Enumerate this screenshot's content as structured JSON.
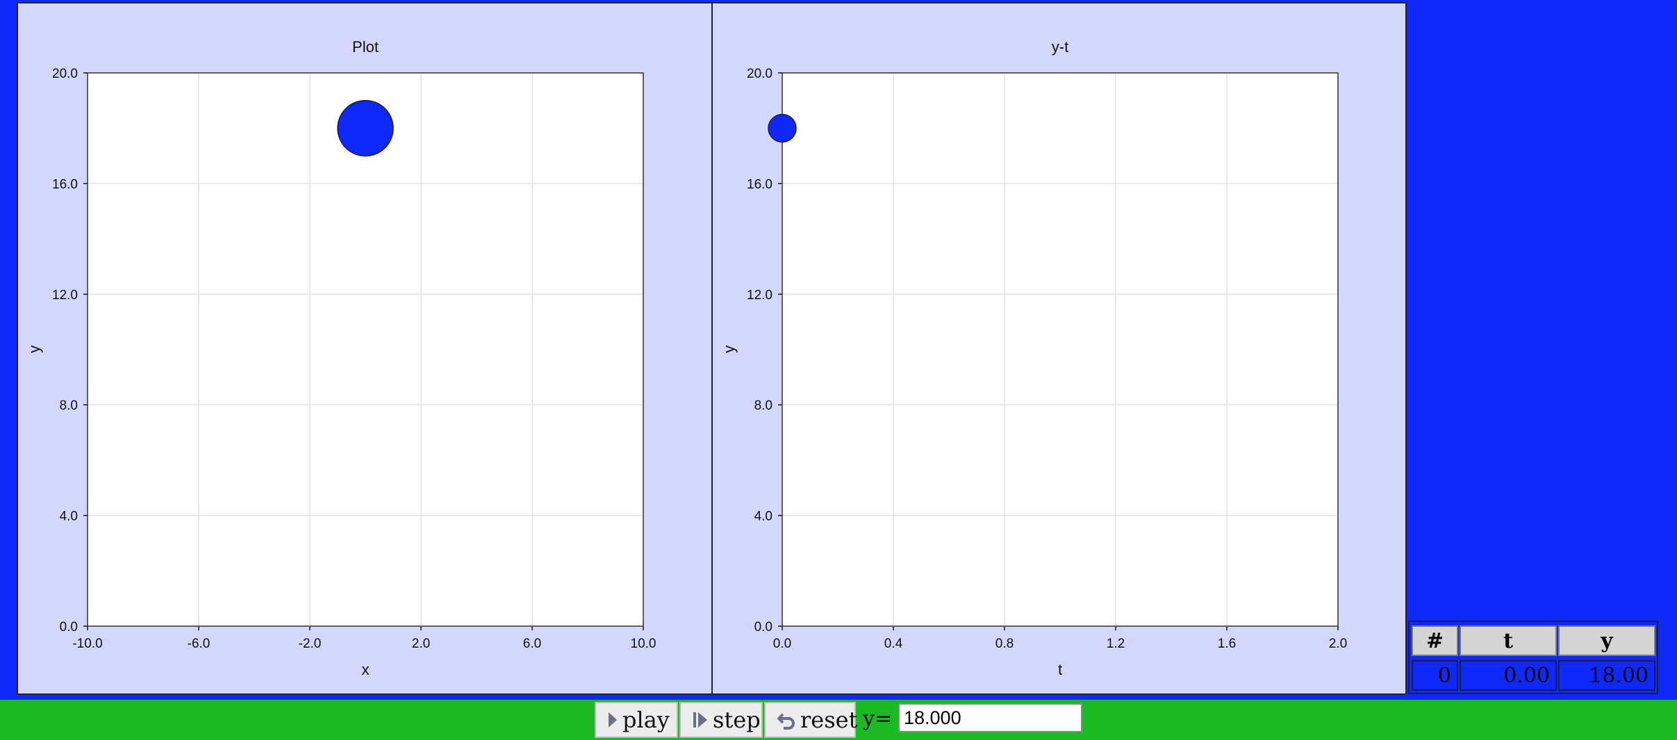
{
  "colors": {
    "background": "#1029fb",
    "panel": "#d2d7fb",
    "plot_area": "#ffffff",
    "grid": "#e2e2e2",
    "ball": "#1029fb",
    "bottom_bar": "#1bb923"
  },
  "plot": {
    "title": "Plot",
    "xlabel": "x",
    "ylabel": "y"
  },
  "yt": {
    "title": "y-t",
    "xlabel": "t",
    "ylabel": "y"
  },
  "chart_data": [
    {
      "type": "scatter",
      "title": "Plot",
      "xlabel": "x",
      "ylabel": "y",
      "xlim": [
        -10.0,
        10.0
      ],
      "ylim": [
        0.0,
        20.0
      ],
      "xticks": [
        "-10.0",
        "-6.0",
        "-2.0",
        "2.0",
        "6.0",
        "10.0"
      ],
      "yticks": [
        "0.0",
        "4.0",
        "8.0",
        "12.0",
        "16.0",
        "20.0"
      ],
      "grid": true,
      "points": [
        {
          "x": 0.0,
          "y": 18.0
        }
      ]
    },
    {
      "type": "scatter",
      "title": "y-t",
      "xlabel": "t",
      "ylabel": "y",
      "xlim": [
        0.0,
        2.0
      ],
      "ylim": [
        0.0,
        20.0
      ],
      "xticks": [
        "0.0",
        "0.4",
        "0.8",
        "1.2",
        "1.6",
        "2.0"
      ],
      "yticks": [
        "0.0",
        "4.0",
        "8.0",
        "12.0",
        "16.0",
        "20.0"
      ],
      "grid": true,
      "points": [
        {
          "x": 0.0,
          "y": 18.0
        }
      ]
    }
  ],
  "table": {
    "headers": [
      "#",
      "t",
      "y"
    ],
    "rows": [
      [
        "0",
        "0.00",
        "18.00"
      ]
    ]
  },
  "controls": {
    "play_label": "play",
    "step_label": "step",
    "reset_label": "reset",
    "y_label": "y=",
    "y_value": "18.000"
  },
  "icons": {
    "play": "play-icon",
    "step": "step-icon",
    "reset": "reset-icon"
  }
}
